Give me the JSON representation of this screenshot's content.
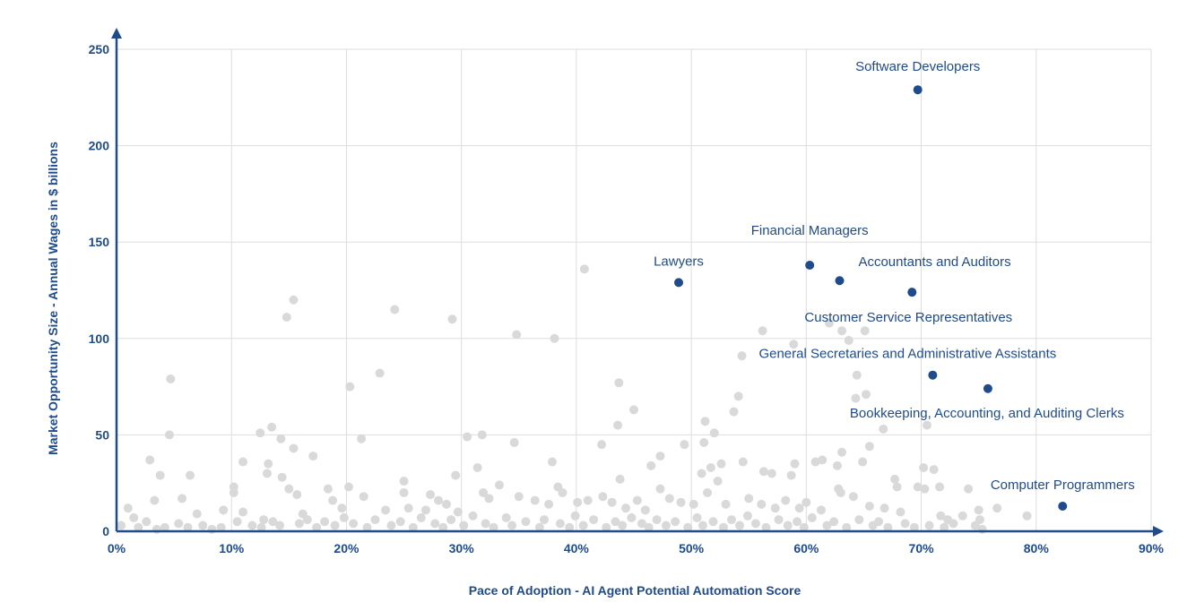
{
  "chart_data": {
    "type": "scatter",
    "title": "",
    "xlabel": "Pace of Adoption - AI Agent Potential Automation Score",
    "ylabel": "Market Opportunity Size - Annual Wages in $ billions",
    "xlim": [
      0,
      90
    ],
    "ylim": [
      0,
      250
    ],
    "x_ticks": [
      "0%",
      "10%",
      "20%",
      "30%",
      "40%",
      "50%",
      "60%",
      "70%",
      "80%",
      "90%"
    ],
    "y_ticks": [
      "0",
      "50",
      "100",
      "150",
      "200",
      "250"
    ],
    "grid": true,
    "colors": {
      "highlight": "#1f4b8a",
      "background_points": "#d9d9d9",
      "grid": "#dddddd",
      "axis": "#1f4b8a"
    },
    "highlighted": [
      {
        "name": "Software Developers",
        "x": 69.7,
        "y": 229
      },
      {
        "name": "Financial Managers",
        "x": 60.3,
        "y": 138
      },
      {
        "name": "Accountants and Auditors",
        "x": 62.9,
        "y": 130
      },
      {
        "name": "Lawyers",
        "x": 48.9,
        "y": 129
      },
      {
        "name": "Customer Service Representatives",
        "x": 69.2,
        "y": 124
      },
      {
        "name": "General Secretaries and Administrative Assistants",
        "x": 71.0,
        "y": 81
      },
      {
        "name": "Bookkeeping, Accounting, and Auditing Clerks",
        "x": 75.8,
        "y": 74
      },
      {
        "name": "Computer Programmers",
        "x": 82.3,
        "y": 13
      }
    ],
    "background_points": [
      [
        40.7,
        136
      ],
      [
        15.4,
        120
      ],
      [
        14.8,
        111
      ],
      [
        24.2,
        115
      ],
      [
        29.2,
        110
      ],
      [
        34.8,
        102
      ],
      [
        38.1,
        100
      ],
      [
        56.2,
        104
      ],
      [
        58.9,
        97
      ],
      [
        62.0,
        108
      ],
      [
        63.1,
        104
      ],
      [
        65.1,
        104
      ],
      [
        63.7,
        99
      ],
      [
        64.4,
        81
      ],
      [
        4.7,
        79
      ],
      [
        22.9,
        82
      ],
      [
        43.7,
        77
      ],
      [
        54.4,
        91
      ],
      [
        20.3,
        75
      ],
      [
        54.1,
        70
      ],
      [
        65.2,
        71
      ],
      [
        64.3,
        69
      ],
      [
        45.0,
        63
      ],
      [
        53.7,
        62
      ],
      [
        4.6,
        50
      ],
      [
        13.5,
        54
      ],
      [
        12.5,
        51
      ],
      [
        14.3,
        48
      ],
      [
        15.4,
        43
      ],
      [
        17.1,
        39
      ],
      [
        21.3,
        48
      ],
      [
        30.5,
        49
      ],
      [
        31.8,
        50
      ],
      [
        34.6,
        46
      ],
      [
        43.6,
        55
      ],
      [
        51.2,
        57
      ],
      [
        52.0,
        51
      ],
      [
        51.1,
        46
      ],
      [
        49.4,
        45
      ],
      [
        42.2,
        45
      ],
      [
        65.5,
        44
      ],
      [
        66.7,
        53
      ],
      [
        70.5,
        55
      ],
      [
        2.9,
        37
      ],
      [
        3.8,
        29
      ],
      [
        6.4,
        29
      ],
      [
        11.0,
        36
      ],
      [
        13.2,
        35
      ],
      [
        14.4,
        28
      ],
      [
        15.0,
        22
      ],
      [
        10.2,
        23
      ],
      [
        10.2,
        20
      ],
      [
        13.1,
        30
      ],
      [
        20.2,
        23
      ],
      [
        25.0,
        26
      ],
      [
        25.0,
        20
      ],
      [
        29.5,
        29
      ],
      [
        31.4,
        33
      ],
      [
        37.9,
        36
      ],
      [
        38.4,
        23
      ],
      [
        38.8,
        20
      ],
      [
        43.8,
        27
      ],
      [
        46.5,
        34
      ],
      [
        47.3,
        39
      ],
      [
        47.3,
        22
      ],
      [
        50.9,
        30
      ],
      [
        51.7,
        33
      ],
      [
        52.6,
        35
      ],
      [
        54.5,
        36
      ],
      [
        55.0,
        17
      ],
      [
        56.3,
        31
      ],
      [
        57.0,
        30
      ],
      [
        58.7,
        29
      ],
      [
        59.0,
        35
      ],
      [
        60.8,
        36
      ],
      [
        61.4,
        37
      ],
      [
        62.7,
        34
      ],
      [
        63.1,
        41
      ],
      [
        62.8,
        22
      ],
      [
        64.1,
        18
      ],
      [
        64.9,
        36
      ],
      [
        67.7,
        27
      ],
      [
        67.9,
        23
      ],
      [
        69.7,
        23
      ],
      [
        70.2,
        33
      ],
      [
        70.3,
        22
      ],
      [
        71.1,
        32
      ],
      [
        71.6,
        23
      ],
      [
        74.1,
        22
      ],
      [
        76.6,
        12
      ],
      [
        79.2,
        8
      ],
      [
        1.0,
        12
      ],
      [
        1.5,
        7
      ],
      [
        3.3,
        16
      ],
      [
        5.7,
        17
      ],
      [
        7.0,
        9
      ],
      [
        9.3,
        11
      ],
      [
        11.0,
        10
      ],
      [
        12.8,
        6
      ],
      [
        15.7,
        19
      ],
      [
        16.2,
        9
      ],
      [
        18.4,
        22
      ],
      [
        18.8,
        16
      ],
      [
        19.6,
        12
      ],
      [
        21.5,
        18
      ],
      [
        23.4,
        11
      ],
      [
        25.4,
        12
      ],
      [
        26.9,
        11
      ],
      [
        27.3,
        19
      ],
      [
        28.0,
        16
      ],
      [
        28.7,
        14
      ],
      [
        29.7,
        10
      ],
      [
        31.9,
        20
      ],
      [
        32.4,
        17
      ],
      [
        33.3,
        24
      ],
      [
        35.0,
        18
      ],
      [
        36.4,
        16
      ],
      [
        37.6,
        14
      ],
      [
        40.1,
        15
      ],
      [
        41.0,
        16
      ],
      [
        42.3,
        18
      ],
      [
        43.1,
        15
      ],
      [
        44.3,
        12
      ],
      [
        45.3,
        16
      ],
      [
        46.0,
        11
      ],
      [
        48.1,
        17
      ],
      [
        49.1,
        15
      ],
      [
        50.2,
        14
      ],
      [
        51.4,
        20
      ],
      [
        52.3,
        26
      ],
      [
        53.0,
        14
      ],
      [
        56.1,
        14
      ],
      [
        57.3,
        12
      ],
      [
        58.2,
        16
      ],
      [
        59.4,
        12
      ],
      [
        60.0,
        15
      ],
      [
        61.3,
        11
      ],
      [
        63.0,
        20
      ],
      [
        65.5,
        13
      ],
      [
        66.8,
        12
      ],
      [
        68.2,
        10
      ],
      [
        71.7,
        8
      ],
      [
        72.3,
        6
      ],
      [
        73.6,
        8
      ],
      [
        75.0,
        11
      ],
      [
        75.1,
        6
      ],
      [
        0.4,
        3
      ],
      [
        1.9,
        2
      ],
      [
        2.6,
        5
      ],
      [
        3.5,
        1
      ],
      [
        4.2,
        2
      ],
      [
        5.4,
        4
      ],
      [
        6.2,
        2
      ],
      [
        7.5,
        3
      ],
      [
        8.3,
        1
      ],
      [
        9.1,
        2
      ],
      [
        10.5,
        5
      ],
      [
        11.8,
        3
      ],
      [
        12.6,
        2
      ],
      [
        13.6,
        5
      ],
      [
        14.2,
        3
      ],
      [
        15.9,
        4
      ],
      [
        16.6,
        6
      ],
      [
        17.4,
        2
      ],
      [
        18.1,
        5
      ],
      [
        19.0,
        3
      ],
      [
        19.8,
        7
      ],
      [
        20.6,
        4
      ],
      [
        21.8,
        2
      ],
      [
        22.5,
        6
      ],
      [
        23.9,
        3
      ],
      [
        24.7,
        5
      ],
      [
        25.8,
        2
      ],
      [
        26.5,
        7
      ],
      [
        27.7,
        4
      ],
      [
        28.4,
        2
      ],
      [
        29.1,
        6
      ],
      [
        30.2,
        3
      ],
      [
        31.0,
        8
      ],
      [
        32.1,
        4
      ],
      [
        32.8,
        2
      ],
      [
        33.9,
        7
      ],
      [
        34.4,
        3
      ],
      [
        35.6,
        5
      ],
      [
        36.8,
        2
      ],
      [
        37.2,
        6
      ],
      [
        38.6,
        4
      ],
      [
        39.4,
        2
      ],
      [
        39.9,
        8
      ],
      [
        40.6,
        3
      ],
      [
        41.5,
        6
      ],
      [
        42.6,
        2
      ],
      [
        43.4,
        5
      ],
      [
        44.0,
        3
      ],
      [
        44.8,
        7
      ],
      [
        45.7,
        4
      ],
      [
        46.3,
        2
      ],
      [
        47.0,
        6
      ],
      [
        47.8,
        3
      ],
      [
        48.6,
        5
      ],
      [
        49.7,
        2
      ],
      [
        50.5,
        7
      ],
      [
        51.0,
        3
      ],
      [
        51.9,
        5
      ],
      [
        52.8,
        2
      ],
      [
        53.5,
        6
      ],
      [
        54.2,
        3
      ],
      [
        54.9,
        8
      ],
      [
        55.6,
        4
      ],
      [
        56.5,
        2
      ],
      [
        57.6,
        6
      ],
      [
        58.4,
        3
      ],
      [
        59.2,
        5
      ],
      [
        59.8,
        2
      ],
      [
        60.5,
        7
      ],
      [
        61.8,
        3
      ],
      [
        62.4,
        5
      ],
      [
        63.5,
        2
      ],
      [
        64.6,
        6
      ],
      [
        65.8,
        3
      ],
      [
        66.3,
        5
      ],
      [
        67.1,
        2
      ],
      [
        68.6,
        4
      ],
      [
        69.4,
        2
      ],
      [
        70.7,
        3
      ],
      [
        72.0,
        2
      ],
      [
        72.8,
        4
      ],
      [
        74.7,
        3
      ],
      [
        75.3,
        1
      ]
    ]
  }
}
